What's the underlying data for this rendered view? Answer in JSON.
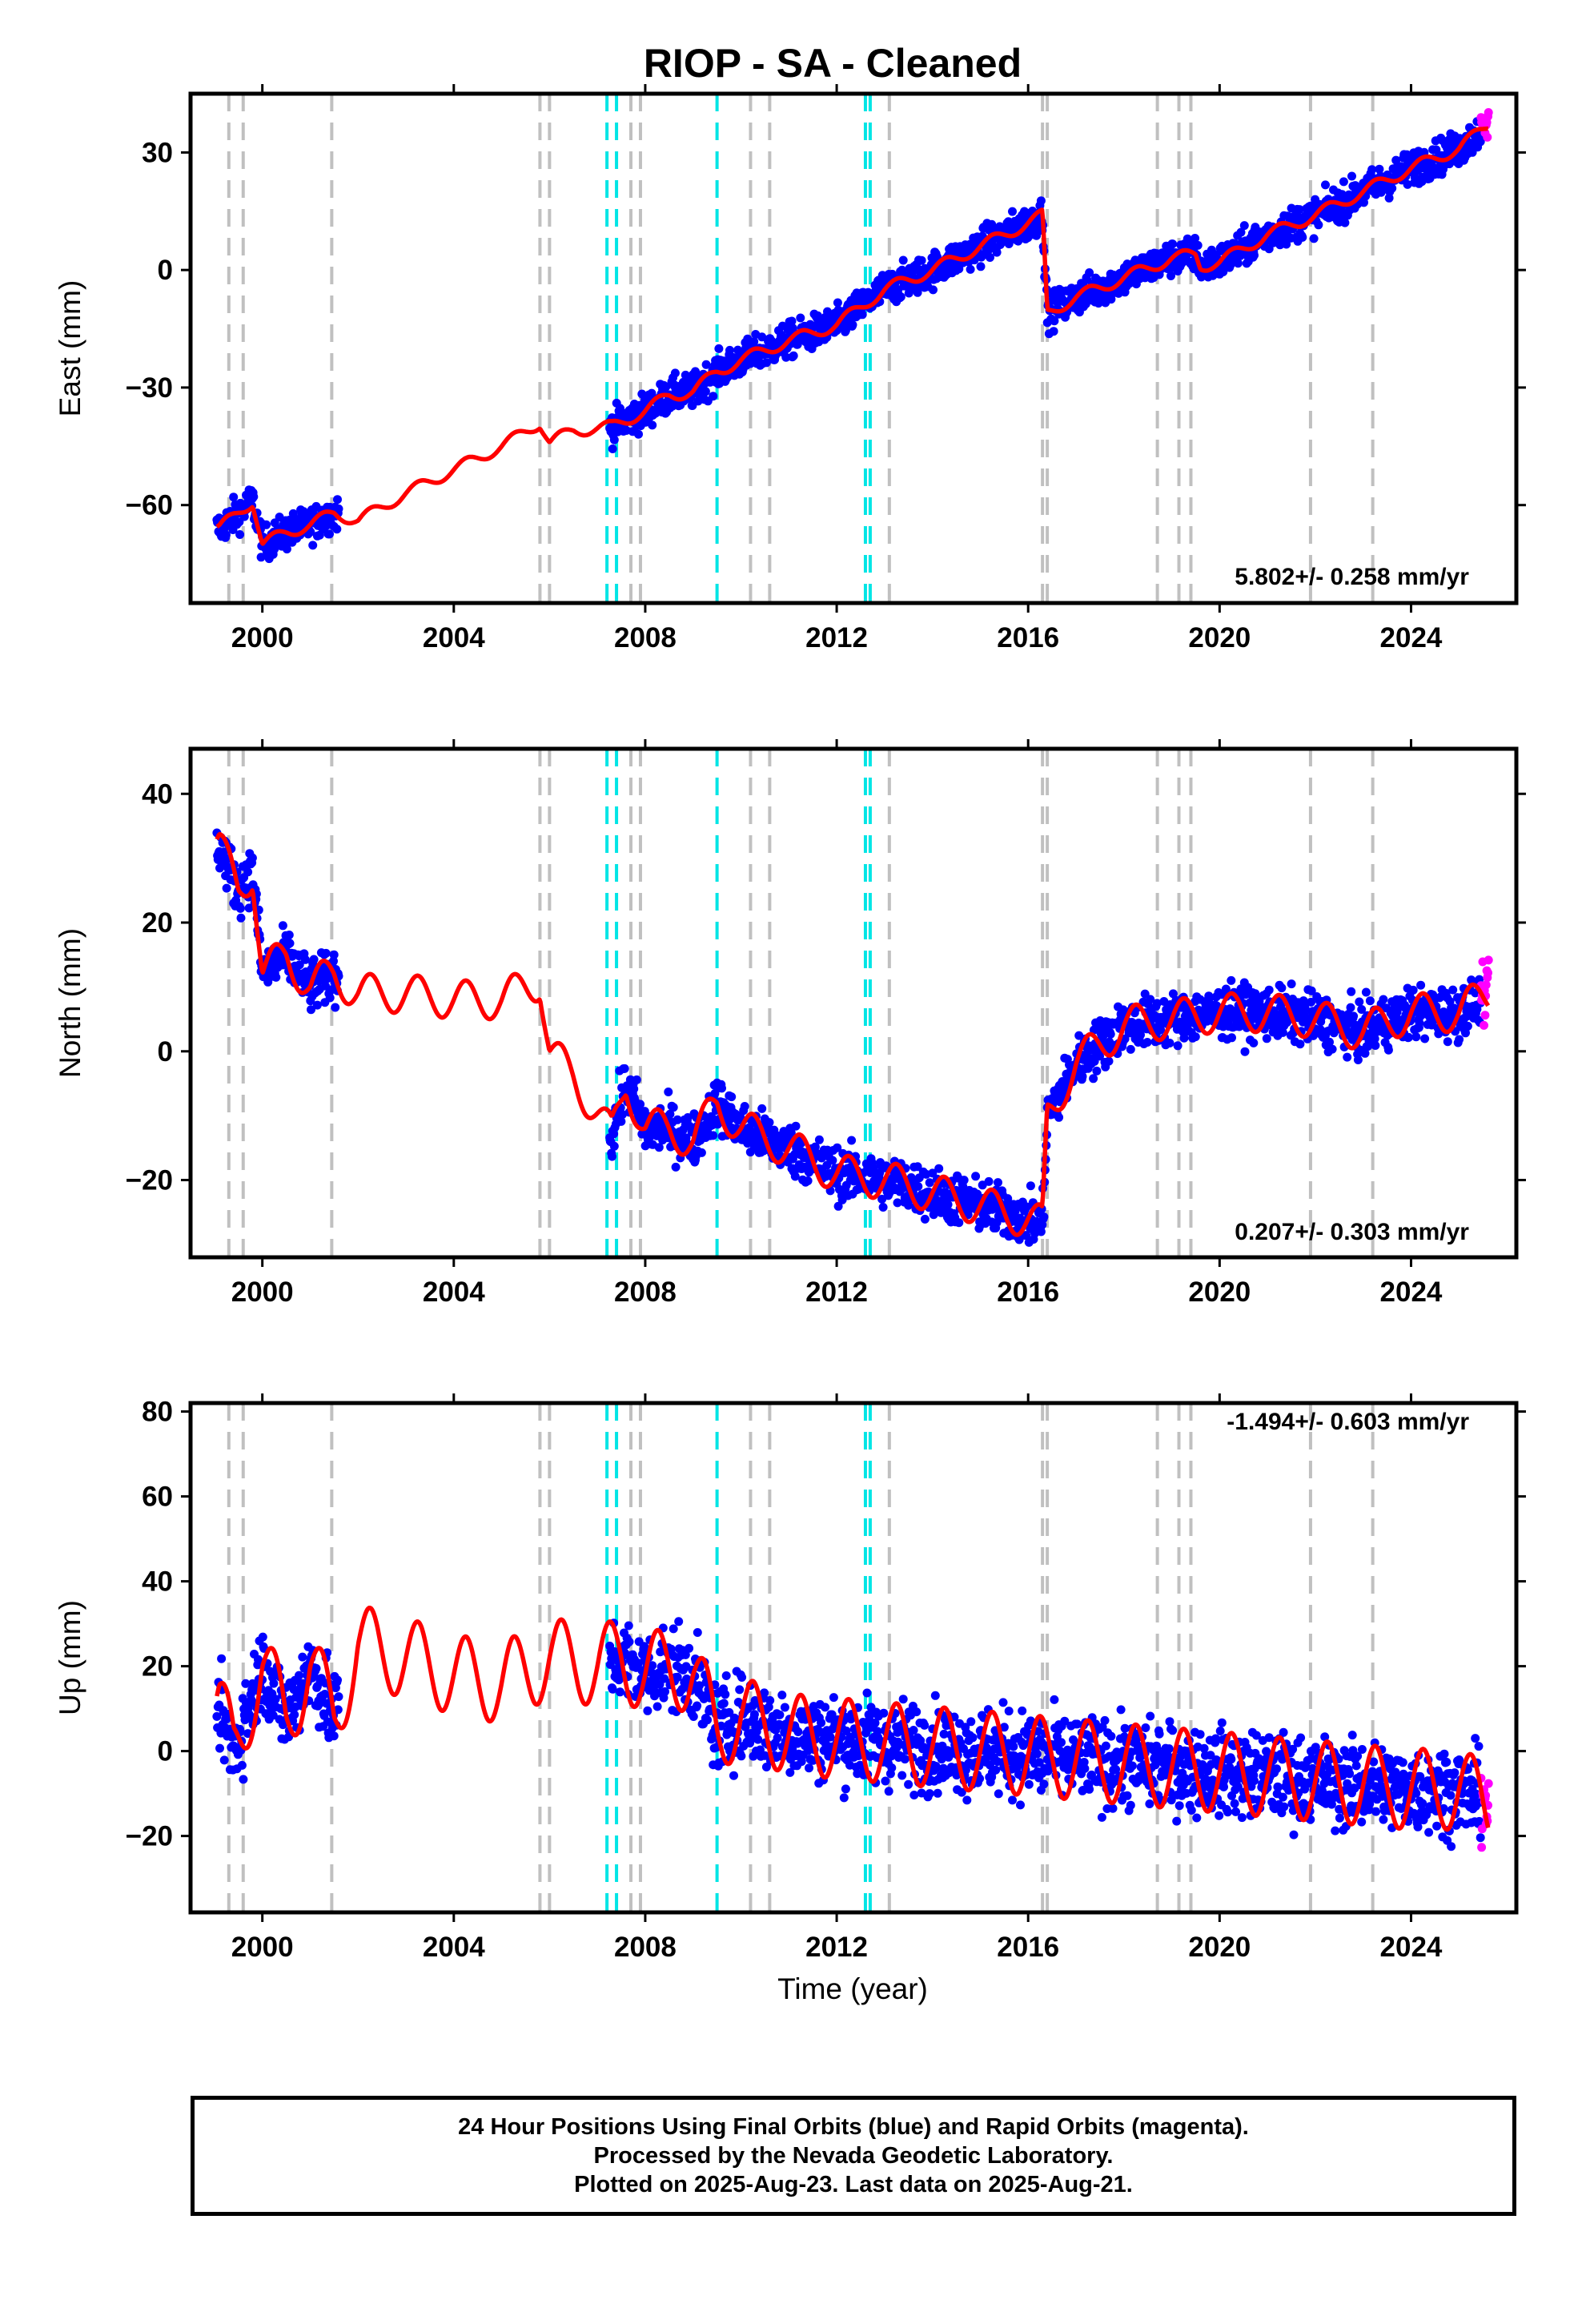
{
  "title": "RIOP  - SA - Cleaned",
  "xlabel": "Time (year)",
  "x_ticks": [
    "2000",
    "2004",
    "2008",
    "2012",
    "2016",
    "2020",
    "2024"
  ],
  "colors": {
    "final_orbits": "#0000ff",
    "rapid_orbits": "#ff00ff",
    "model": "#ff0000",
    "equipment_change": "#c0c0c0",
    "earthquake": "#00e5e5"
  },
  "footer": {
    "line1": "24 Hour Positions Using Final Orbits (blue) and Rapid Orbits (magenta).",
    "line2": "Processed by the Nevada Geodetic Laboratory.",
    "line3": "Plotted on 2025-Aug-23. Last data on 2025-Aug-21."
  },
  "chart_data": [
    {
      "type": "scatter",
      "component": "east",
      "ylabel": "East (mm)",
      "y_ticks": [
        "30",
        "0",
        "−30",
        "−60"
      ],
      "xlim": [
        1998.5,
        2026.2
      ],
      "ylim": [
        -85,
        45
      ],
      "velocity": "5.802+/- 0.258 mm/yr",
      "series": [
        {
          "values": [
            [
              1999.1,
              -66
            ],
            [
              1999.5,
              -62
            ],
            [
              1999.8,
              -59
            ],
            [
              2000.0,
              -70
            ],
            [
              2000.5,
              -67
            ],
            [
              2001.0,
              -65
            ],
            [
              2001.5,
              -62
            ],
            [
              2002.0,
              -64
            ],
            [
              2003.0,
              -57
            ],
            [
              2004.0,
              -51
            ],
            [
              2005.0,
              -45
            ],
            [
              2005.8,
              -39
            ],
            [
              2006.0,
              -44
            ],
            [
              2006.5,
              -41
            ],
            [
              2007.3,
              -40
            ],
            [
              2008.0,
              -36
            ],
            [
              2008.5,
              -32
            ],
            [
              2009.0,
              -31
            ],
            [
              2009.5,
              -26
            ],
            [
              2010.0,
              -23
            ],
            [
              2011.0,
              -18
            ],
            [
              2012.0,
              -14
            ],
            [
              2013.0,
              -5
            ],
            [
              2014.0,
              0
            ],
            [
              2015.0,
              6
            ],
            [
              2016.0,
              12
            ],
            [
              2016.3,
              14
            ],
            [
              2016.4,
              -11
            ],
            [
              2017.0,
              -7
            ],
            [
              2018.0,
              -2
            ],
            [
              2019.0,
              3
            ],
            [
              2019.5,
              4
            ],
            [
              2019.6,
              1
            ],
            [
              2020.0,
              2
            ],
            [
              2021.0,
              9
            ],
            [
              2022.0,
              14
            ],
            [
              2023.0,
              20
            ],
            [
              2024.0,
              26
            ],
            [
              2025.0,
              31
            ],
            [
              2025.6,
              37
            ]
          ]
        }
      ]
    },
    {
      "type": "scatter",
      "component": "north",
      "ylabel": "North (mm)",
      "y_ticks": [
        "40",
        "20",
        "0",
        "−20"
      ],
      "xlim": [
        1998.5,
        2026.2
      ],
      "ylim": [
        -32,
        47
      ],
      "velocity": "0.207+/- 0.303 mm/yr",
      "series": [
        {
          "values": [
            [
              1999.1,
              32
            ],
            [
              1999.5,
              25
            ],
            [
              1999.8,
              28
            ],
            [
              2000.0,
              12
            ],
            [
              2000.5,
              15
            ],
            [
              2001.0,
              10
            ],
            [
              2001.5,
              12
            ],
            [
              2002.0,
              9
            ],
            [
              2003.0,
              9
            ],
            [
              2004.0,
              8
            ],
            [
              2005.0,
              8
            ],
            [
              2005.8,
              11
            ],
            [
              2006.0,
              0
            ],
            [
              2006.5,
              -4
            ],
            [
              2007.3,
              -13
            ],
            [
              2007.6,
              -5
            ],
            [
              2008.0,
              -12
            ],
            [
              2008.5,
              -12
            ],
            [
              2009.0,
              -14
            ],
            [
              2009.5,
              -8
            ],
            [
              2010.0,
              -12
            ],
            [
              2011.0,
              -15
            ],
            [
              2012.0,
              -19
            ],
            [
              2013.0,
              -20
            ],
            [
              2014.0,
              -22
            ],
            [
              2015.0,
              -24
            ],
            [
              2016.0,
              -26
            ],
            [
              2016.3,
              -27
            ],
            [
              2016.4,
              -10
            ],
            [
              2017.0,
              -2
            ],
            [
              2018.0,
              4
            ],
            [
              2019.0,
              5
            ],
            [
              2020.0,
              6
            ],
            [
              2021.0,
              6
            ],
            [
              2022.0,
              5
            ],
            [
              2023.0,
              3
            ],
            [
              2024.0,
              6
            ],
            [
              2025.0,
              6
            ],
            [
              2025.6,
              9
            ]
          ]
        }
      ]
    },
    {
      "type": "scatter",
      "component": "up",
      "ylabel": "Up (mm)",
      "y_ticks": [
        "80",
        "60",
        "40",
        "20",
        "0",
        "−20"
      ],
      "xlim": [
        1998.5,
        2026.2
      ],
      "ylim": [
        -38,
        82
      ],
      "velocity": "-1.494+/- 0.603 mm/yr",
      "series": [
        {
          "values": [
            [
              1999.1,
              10
            ],
            [
              1999.4,
              0
            ],
            [
              2000.0,
              20
            ],
            [
              2000.5,
              8
            ],
            [
              2001.0,
              20
            ],
            [
              2001.5,
              8
            ],
            [
              2002.0,
              25
            ],
            [
              2003.0,
              22
            ],
            [
              2004.0,
              18
            ],
            [
              2005.0,
              16
            ],
            [
              2006.0,
              22
            ],
            [
              2007.0,
              20
            ],
            [
              2007.5,
              22
            ],
            [
              2008.0,
              18
            ],
            [
              2008.5,
              20
            ],
            [
              2009.0,
              18
            ],
            [
              2009.5,
              5
            ],
            [
              2010.0,
              8
            ],
            [
              2011.0,
              4
            ],
            [
              2012.0,
              3
            ],
            [
              2013.0,
              2
            ],
            [
              2014.0,
              1
            ],
            [
              2015.0,
              0
            ],
            [
              2016.0,
              -1
            ],
            [
              2017.0,
              -2
            ],
            [
              2018.0,
              -3
            ],
            [
              2019.0,
              -4
            ],
            [
              2020.0,
              -5
            ],
            [
              2021.0,
              -6
            ],
            [
              2022.0,
              -7
            ],
            [
              2023.0,
              -8
            ],
            [
              2024.0,
              -9
            ],
            [
              2025.0,
              -9
            ],
            [
              2025.6,
              -12
            ]
          ]
        }
      ]
    }
  ],
  "equipment_changes": [
    1999.3,
    1999.6,
    2001.45,
    2005.8,
    2006.0,
    2007.7,
    2007.9,
    2010.2,
    2010.6,
    2013.1,
    2016.3,
    2016.4,
    2018.7,
    2019.15,
    2019.4,
    2021.9,
    2023.2
  ],
  "earthquakes": [
    2007.2,
    2007.4,
    2009.5,
    2012.6,
    2012.7
  ]
}
